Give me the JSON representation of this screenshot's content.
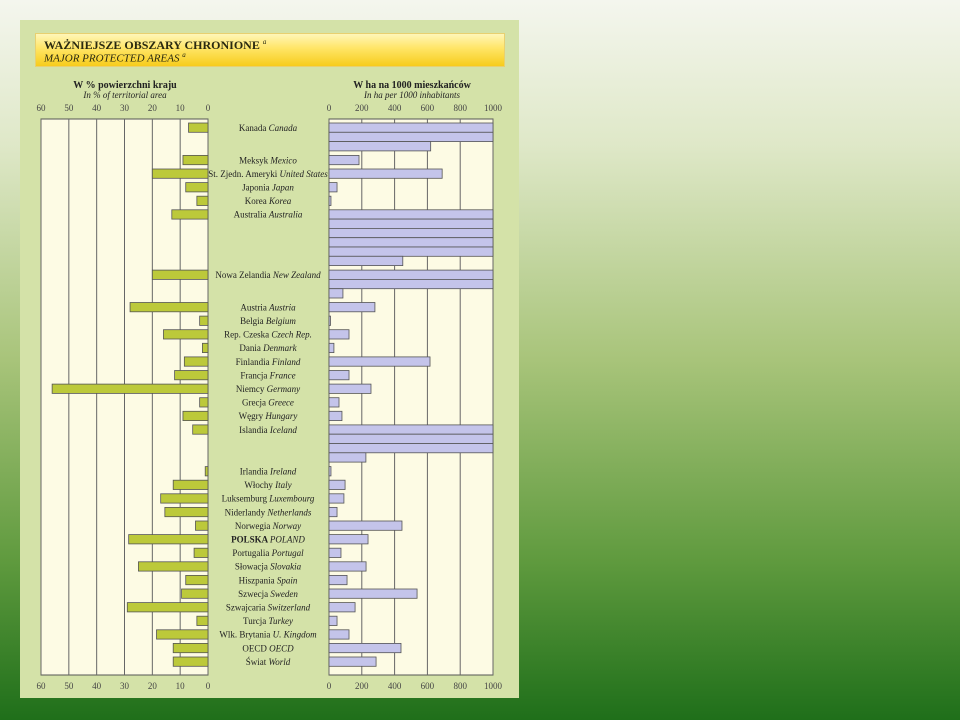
{
  "title": {
    "pl": "WAŻNIEJSZE OBSZARY CHRONIONE",
    "en": "MAJOR PROTECTED AREAS",
    "footnote": "a"
  },
  "chart_data": [
    {
      "type": "bar",
      "orientation": "horizontal",
      "title": "W % powierzchni kraju",
      "subtitle": "In % of territorial area",
      "xlim": [
        60,
        0
      ],
      "ticks": [
        "60",
        "50",
        "40",
        "30",
        "20",
        "10",
        "0"
      ],
      "grid": true,
      "bar_color": "#bcc93a"
    },
    {
      "type": "bar",
      "orientation": "horizontal",
      "title": "W ha na 1000 mieszkańców",
      "subtitle": "In ha per 1000 inhabitants",
      "xlim": [
        0,
        1000
      ],
      "ticks": [
        "0",
        "200",
        "400",
        "600",
        "800",
        "1000"
      ],
      "grid": true,
      "bar_color": "#c4c4ea",
      "note": "values above 1000 wrap into additional stacked bars"
    }
  ],
  "rows": [
    {
      "pl": "Kanada",
      "en": "Canada",
      "pct": 7,
      "ha": 2620
    },
    {
      "pl": "Meksyk",
      "en": "Mexico",
      "pct": 9,
      "ha": 183
    },
    {
      "pl": "St. Zjedn. Ameryki",
      "en": "United States",
      "pct": 20,
      "ha": 690
    },
    {
      "pl": "Japonia",
      "en": "Japan",
      "pct": 8,
      "ha": 49
    },
    {
      "pl": "Korea",
      "en": "Korea",
      "pct": 4,
      "ha": 12
    },
    {
      "pl": "Australia",
      "en": "Australia",
      "pct": 13,
      "ha": 5450
    },
    {
      "pl": "Nowa Zelandia",
      "en": "New Zealand",
      "pct": 20,
      "ha": 2085
    },
    {
      "pl": "Austria",
      "en": "Austria",
      "pct": 28,
      "ha": 280
    },
    {
      "pl": "Belgia",
      "en": "Belgium",
      "pct": 3,
      "ha": 6
    },
    {
      "pl": "Rep. Czeska",
      "en": "Czech Rep.",
      "pct": 16,
      "ha": 122
    },
    {
      "pl": "Dania",
      "en": "Denmark",
      "pct": 2,
      "ha": 30
    },
    {
      "pl": "Finlandia",
      "en": "Finland",
      "pct": 8.5,
      "ha": 616
    },
    {
      "pl": "Francja",
      "en": "France",
      "pct": 12,
      "ha": 122
    },
    {
      "pl": "Niemcy",
      "en": "Germany",
      "pct": 56,
      "ha": 256
    },
    {
      "pl": "Grecja",
      "en": "Greece",
      "pct": 3,
      "ha": 61
    },
    {
      "pl": "Węgry",
      "en": "Hungary",
      "pct": 9,
      "ha": 79
    },
    {
      "pl": "Islandia",
      "en": "Iceland",
      "pct": 5.5,
      "ha": 3225
    },
    {
      "pl": "Irlandia",
      "en": "Ireland",
      "pct": 1,
      "ha": 12
    },
    {
      "pl": "Włochy",
      "en": "Italy",
      "pct": 12.5,
      "ha": 98
    },
    {
      "pl": "Luksemburg",
      "en": "Luxembourg",
      "pct": 17,
      "ha": 91
    },
    {
      "pl": "Niderlandy",
      "en": "Netherlands",
      "pct": 15.5,
      "ha": 49
    },
    {
      "pl": "Norwegia",
      "en": "Norway",
      "pct": 4.5,
      "ha": 445
    },
    {
      "pl": "POLSKA",
      "en": "POLAND",
      "pct": 28.5,
      "ha": 238,
      "highlight": true
    },
    {
      "pl": "Portugalia",
      "en": "Portugal",
      "pct": 5,
      "ha": 73
    },
    {
      "pl": "Słowacja",
      "en": "Slovakia",
      "pct": 25,
      "ha": 226
    },
    {
      "pl": "Hiszpania",
      "en": "Spain",
      "pct": 8,
      "ha": 110
    },
    {
      "pl": "Szwecja",
      "en": "Sweden",
      "pct": 9.5,
      "ha": 537
    },
    {
      "pl": "Szwajcaria",
      "en": "Switzerland",
      "pct": 29,
      "ha": 159
    },
    {
      "pl": "Turcja",
      "en": "Turkey",
      "pct": 4,
      "ha": 49
    },
    {
      "pl": "Wlk. Brytania",
      "en": "U. Kingdom",
      "pct": 18.5,
      "ha": 122
    },
    {
      "pl": "OECD",
      "en": "OECD",
      "pct": 12.5,
      "ha": 439
    },
    {
      "pl": "Świat",
      "en": "World",
      "pct": 12.5,
      "ha": 287
    }
  ]
}
